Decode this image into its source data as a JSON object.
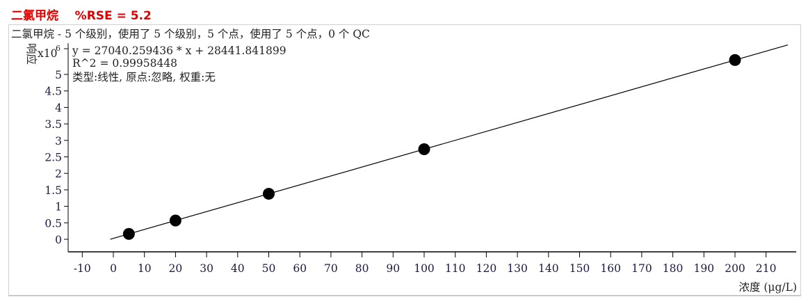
{
  "header": {
    "title": "二氯甲烷    %RSE = 5.2"
  },
  "chart_data": {
    "type": "scatter",
    "subtitle": "二氯甲烷 - 5 个级别，使用了 5 个级别，5 个点，使用了 5 个点，0 个 QC",
    "equation": "y = 27040.259436 * x  + 28441.841899",
    "r2": "R^2 = 0.99958448",
    "fit_info": "类型:线性, 原点:忽略, 权重:无",
    "xlabel": "浓度 (μg/L)",
    "ylabel": "响应",
    "y_multiplier": "x10",
    "y_multiplier_exp": "6",
    "xlim": [
      -10,
      220
    ],
    "ylim": [
      -0.4,
      5.9
    ],
    "x_ticks": [
      -10,
      0,
      10,
      20,
      30,
      40,
      50,
      60,
      70,
      80,
      90,
      100,
      110,
      120,
      130,
      140,
      150,
      160,
      170,
      180,
      190,
      200,
      210
    ],
    "y_ticks": [
      0,
      0.5,
      1,
      1.5,
      2,
      2.5,
      3,
      3.5,
      4,
      4.5,
      5
    ],
    "points": [
      {
        "x": 5,
        "y": 163643
      },
      {
        "x": 20,
        "y": 569246
      },
      {
        "x": 50,
        "y": 1380455
      },
      {
        "x": 100,
        "y": 2732468
      },
      {
        "x": 200,
        "y": 5436493
      }
    ],
    "fit": {
      "slope": 27040.259436,
      "intercept": 28441.841899,
      "x_range": [
        -1,
        217
      ]
    },
    "colors": {
      "points": "#000000",
      "line": "#000000",
      "title": "#e00000",
      "ticks": "#1a1a40"
    },
    "grid": false
  }
}
